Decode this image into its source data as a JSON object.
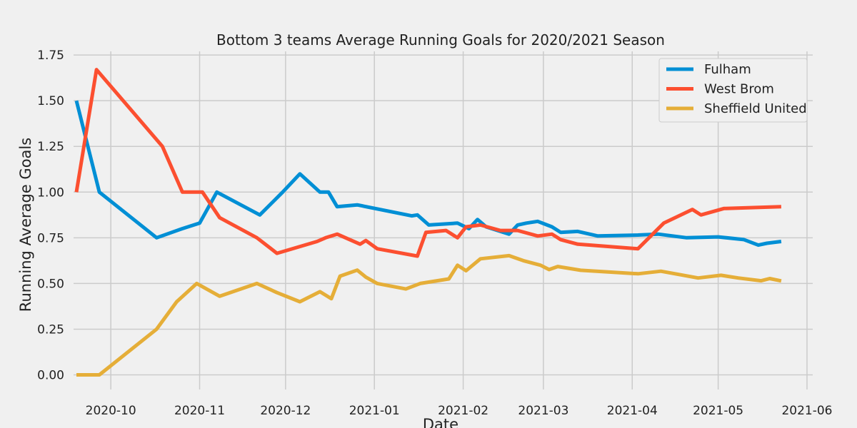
{
  "chart_data": {
    "type": "line",
    "title": "Bottom 3 teams Average Running Goals for 2020/2021 Season",
    "xlabel": "Date",
    "ylabel": "Running Average Goals",
    "xlim": [
      "2020-09-18",
      "2021-06-03"
    ],
    "ylim": [
      -0.08,
      1.77
    ],
    "x_ticks": [
      "2020-10",
      "2020-11",
      "2020-12",
      "2021-01",
      "2021-02",
      "2021-03",
      "2021-04",
      "2021-05",
      "2021-06"
    ],
    "y_ticks": [
      "0.00",
      "0.25",
      "0.50",
      "0.75",
      "1.00",
      "1.25",
      "1.50",
      "1.75"
    ],
    "grid": true,
    "legend": "top-right",
    "series": [
      {
        "name": "Fulham",
        "color": "#008fd5",
        "points": [
          [
            "2020-09-19",
            1.5
          ],
          [
            "2020-09-27",
            1.0
          ],
          [
            "2020-10-17",
            0.75
          ],
          [
            "2020-10-26",
            0.8
          ],
          [
            "2020-11-01",
            0.83
          ],
          [
            "2020-11-07",
            1.0
          ],
          [
            "2020-11-22",
            0.875
          ],
          [
            "2020-11-30",
            1.0
          ],
          [
            "2020-12-06",
            1.1
          ],
          [
            "2020-12-13",
            1.0
          ],
          [
            "2020-12-16",
            1.0
          ],
          [
            "2020-12-19",
            0.92
          ],
          [
            "2020-12-26",
            0.93
          ],
          [
            "2021-01-14",
            0.87
          ],
          [
            "2021-01-16",
            0.875
          ],
          [
            "2021-01-20",
            0.82
          ],
          [
            "2021-01-30",
            0.83
          ],
          [
            "2021-02-03",
            0.8
          ],
          [
            "2021-02-06",
            0.85
          ],
          [
            "2021-02-09",
            0.81
          ],
          [
            "2021-02-17",
            0.77
          ],
          [
            "2021-02-20",
            0.82
          ],
          [
            "2021-02-23",
            0.83
          ],
          [
            "2021-02-27",
            0.84
          ],
          [
            "2021-03-04",
            0.81
          ],
          [
            "2021-03-07",
            0.78
          ],
          [
            "2021-03-13",
            0.785
          ],
          [
            "2021-03-20",
            0.76
          ],
          [
            "2021-04-03",
            0.765
          ],
          [
            "2021-04-10",
            0.77
          ],
          [
            "2021-04-20",
            0.75
          ],
          [
            "2021-05-01",
            0.755
          ],
          [
            "2021-05-10",
            0.74
          ],
          [
            "2021-05-15",
            0.71
          ],
          [
            "2021-05-18",
            0.72
          ],
          [
            "2021-05-23",
            0.73
          ]
        ]
      },
      {
        "name": "West Brom",
        "color": "#fc4f30",
        "points": [
          [
            "2020-09-19",
            1.0
          ],
          [
            "2020-09-26",
            1.67
          ],
          [
            "2020-10-19",
            1.25
          ],
          [
            "2020-10-26",
            1.0
          ],
          [
            "2020-11-02",
            1.0
          ],
          [
            "2020-11-08",
            0.86
          ],
          [
            "2020-11-21",
            0.75
          ],
          [
            "2020-11-28",
            0.665
          ],
          [
            "2020-12-12",
            0.73
          ],
          [
            "2020-12-15",
            0.75
          ],
          [
            "2020-12-19",
            0.77
          ],
          [
            "2020-12-27",
            0.715
          ],
          [
            "2020-12-29",
            0.735
          ],
          [
            "2021-01-02",
            0.69
          ],
          [
            "2021-01-16",
            0.65
          ],
          [
            "2021-01-19",
            0.78
          ],
          [
            "2021-01-26",
            0.79
          ],
          [
            "2021-01-30",
            0.75
          ],
          [
            "2021-02-02",
            0.81
          ],
          [
            "2021-02-07",
            0.82
          ],
          [
            "2021-02-14",
            0.79
          ],
          [
            "2021-02-20",
            0.79
          ],
          [
            "2021-02-27",
            0.76
          ],
          [
            "2021-03-04",
            0.77
          ],
          [
            "2021-03-07",
            0.74
          ],
          [
            "2021-03-13",
            0.715
          ],
          [
            "2021-04-03",
            0.69
          ],
          [
            "2021-04-12",
            0.83
          ],
          [
            "2021-04-22",
            0.905
          ],
          [
            "2021-04-25",
            0.875
          ],
          [
            "2021-05-03",
            0.91
          ],
          [
            "2021-05-23",
            0.92
          ]
        ]
      },
      {
        "name": "Sheffield United",
        "color": "#e5ae38",
        "points": [
          [
            "2020-09-19",
            0.0
          ],
          [
            "2020-09-27",
            0.0
          ],
          [
            "2020-10-17",
            0.25
          ],
          [
            "2020-10-24",
            0.4
          ],
          [
            "2020-10-31",
            0.5
          ],
          [
            "2020-11-08",
            0.43
          ],
          [
            "2020-11-21",
            0.5
          ],
          [
            "2020-11-28",
            0.45
          ],
          [
            "2020-12-06",
            0.4
          ],
          [
            "2020-12-13",
            0.455
          ],
          [
            "2020-12-17",
            0.417
          ],
          [
            "2020-12-20",
            0.54
          ],
          [
            "2020-12-26",
            0.573
          ],
          [
            "2020-12-29",
            0.535
          ],
          [
            "2021-01-02",
            0.5
          ],
          [
            "2021-01-12",
            0.47
          ],
          [
            "2021-01-17",
            0.5
          ],
          [
            "2021-01-27",
            0.525
          ],
          [
            "2021-01-30",
            0.6
          ],
          [
            "2021-02-02",
            0.57
          ],
          [
            "2021-02-07",
            0.635
          ],
          [
            "2021-02-17",
            0.652
          ],
          [
            "2021-02-22",
            0.625
          ],
          [
            "2021-02-28",
            0.6
          ],
          [
            "2021-03-03",
            0.576
          ],
          [
            "2021-03-06",
            0.593
          ],
          [
            "2021-03-14",
            0.572
          ],
          [
            "2021-04-03",
            0.553
          ],
          [
            "2021-04-11",
            0.567
          ],
          [
            "2021-04-17",
            0.55
          ],
          [
            "2021-04-24",
            0.53
          ],
          [
            "2021-05-02",
            0.545
          ],
          [
            "2021-05-08",
            0.53
          ],
          [
            "2021-05-16",
            0.515
          ],
          [
            "2021-05-19",
            0.527
          ],
          [
            "2021-05-23",
            0.514
          ]
        ]
      }
    ]
  }
}
